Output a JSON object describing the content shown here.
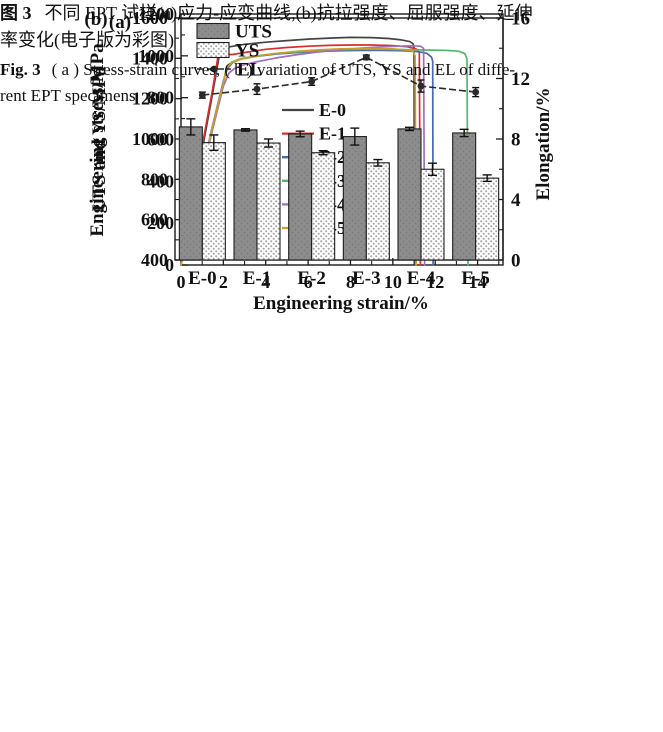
{
  "caption": {
    "zh_label": "图 3",
    "zh_line1_rest": "不同 EPT 试样(a)应力-应变曲线,(b)抗拉强度、屈服强度、延伸",
    "zh_line2": "率变化(电子版为彩图)",
    "en_label": "Fig. 3",
    "en_line1_rest": "( a ) Stress-strain curves, ( b ) variation of UTS, YS and EL of diffe-",
    "en_line2": "rent EPT specimens"
  },
  "chart_data": [
    {
      "id": "a",
      "type": "line",
      "panel_label": "(a)",
      "xlabel": "Engineering strain/%",
      "ylabel": "Engineering stress/MPa",
      "xlim": [
        0,
        15.2
      ],
      "ylim": [
        0,
        1200
      ],
      "xticks": [
        0,
        2,
        4,
        6,
        8,
        10,
        12,
        14
      ],
      "xminor": [
        1,
        3,
        5,
        7,
        9,
        11,
        13,
        15
      ],
      "yticks": [
        0,
        200,
        400,
        600,
        800,
        1000,
        1200
      ],
      "yminor": [
        100,
        300,
        500,
        700,
        900,
        1100
      ],
      "grid": false,
      "legend_position": "inside-center-left",
      "series": [
        {
          "name": "E-0",
          "color": "#454545",
          "points": [
            [
              0,
              0
            ],
            [
              0.5,
              275
            ],
            [
              1.0,
              550
            ],
            [
              1.5,
              825
            ],
            [
              1.85,
              1025
            ],
            [
              1.95,
              1046
            ],
            [
              2.1,
              1049
            ],
            [
              2.3,
              1043
            ],
            [
              3,
              1055
            ],
            [
              4,
              1065
            ],
            [
              5,
              1073
            ],
            [
              6,
              1080
            ],
            [
              7,
              1085
            ],
            [
              8,
              1088
            ],
            [
              9,
              1087
            ],
            [
              9.8,
              1083
            ],
            [
              10.4,
              1076
            ],
            [
              10.8,
              1068
            ],
            [
              10.95,
              1058
            ],
            [
              11.0,
              1040
            ],
            [
              11.02,
              0
            ]
          ]
        },
        {
          "name": "E-1",
          "color": "#dd2c2a",
          "points": [
            [
              0,
              0
            ],
            [
              0.5,
              290
            ],
            [
              1.0,
              570
            ],
            [
              1.5,
              845
            ],
            [
              1.8,
              1030
            ],
            [
              1.9,
              1041
            ],
            [
              2.0,
              1025
            ],
            [
              2.1,
              1009
            ],
            [
              2.4,
              1006
            ],
            [
              3.0,
              1016
            ],
            [
              4.0,
              1031
            ],
            [
              5.0,
              1040
            ],
            [
              6.0,
              1046
            ],
            [
              7.0,
              1050
            ],
            [
              8.0,
              1052
            ],
            [
              9.0,
              1052
            ],
            [
              10.0,
              1049
            ],
            [
              10.7,
              1043
            ],
            [
              11.1,
              1033
            ],
            [
              11.25,
              1015
            ],
            [
              11.3,
              0
            ]
          ]
        },
        {
          "name": "E-2",
          "color": "#4868b1",
          "points": [
            [
              0,
              0
            ],
            [
              0.5,
              225
            ],
            [
              1.0,
              450
            ],
            [
              1.5,
              672
            ],
            [
              2.0,
              880
            ],
            [
              2.2,
              942
            ],
            [
              2.45,
              968
            ],
            [
              2.8,
              984
            ],
            [
              3.5,
              997
            ],
            [
              4.5,
              1009
            ],
            [
              5.5,
              1016
            ],
            [
              6.5,
              1021
            ],
            [
              7.5,
              1024
            ],
            [
              8.5,
              1026
            ],
            [
              9.5,
              1026
            ],
            [
              10.5,
              1024
            ],
            [
              11.2,
              1020
            ],
            [
              11.6,
              1012
            ],
            [
              11.82,
              995
            ],
            [
              11.88,
              975
            ],
            [
              11.9,
              0
            ]
          ]
        },
        {
          "name": "E-3",
          "color": "#52b96b",
          "points": [
            [
              0,
              0
            ],
            [
              0.5,
              222
            ],
            [
              1.0,
              444
            ],
            [
              1.5,
              665
            ],
            [
              2.0,
              872
            ],
            [
              2.15,
              948
            ],
            [
              2.4,
              970
            ],
            [
              2.8,
              986
            ],
            [
              3.5,
              999
            ],
            [
              4.5,
              1011
            ],
            [
              5.5,
              1019
            ],
            [
              6.5,
              1025
            ],
            [
              7.5,
              1029
            ],
            [
              8.5,
              1031
            ],
            [
              9.5,
              1031
            ],
            [
              10.5,
              1030
            ],
            [
              11.5,
              1028
            ],
            [
              12.5,
              1026
            ],
            [
              13.1,
              1022
            ],
            [
              13.4,
              1010
            ],
            [
              13.5,
              985
            ],
            [
              13.55,
              0
            ]
          ]
        },
        {
          "name": "E-4",
          "color": "#a06fba",
          "points": [
            [
              0,
              0
            ],
            [
              0.5,
              218
            ],
            [
              1.0,
              436
            ],
            [
              1.5,
              652
            ],
            [
              2.0,
              855
            ],
            [
              2.25,
              916
            ],
            [
              2.5,
              938
            ],
            [
              2.9,
              955
            ],
            [
              3.5,
              970
            ],
            [
              4.5,
              990
            ],
            [
              5.5,
              1006
            ],
            [
              6.5,
              1019
            ],
            [
              7.5,
              1029
            ],
            [
              8.5,
              1037
            ],
            [
              9.5,
              1043
            ],
            [
              10.3,
              1046
            ],
            [
              10.9,
              1048
            ],
            [
              11.3,
              1046
            ],
            [
              11.45,
              1036
            ],
            [
              11.5,
              0
            ]
          ]
        },
        {
          "name": "E-5",
          "color": "#cd9e2b",
          "points": [
            [
              0,
              0
            ],
            [
              0.5,
              222
            ],
            [
              1.0,
              445
            ],
            [
              1.5,
              668
            ],
            [
              2.0,
              870
            ],
            [
              2.15,
              944
            ],
            [
              2.4,
              966
            ],
            [
              2.8,
              983
            ],
            [
              3.5,
              998
            ],
            [
              4.5,
              1012
            ],
            [
              5.5,
              1022
            ],
            [
              6.5,
              1029
            ],
            [
              7.5,
              1033
            ],
            [
              8.5,
              1035
            ],
            [
              9.3,
              1035
            ],
            [
              10.0,
              1033
            ],
            [
              10.6,
              1029
            ],
            [
              10.95,
              1022
            ],
            [
              11.05,
              1000
            ],
            [
              11.1,
              0
            ]
          ]
        }
      ]
    },
    {
      "id": "b",
      "type": "bar+line",
      "panel_label": "(b)",
      "categories": [
        "E-0",
        "E-1",
        "E-2",
        "E-3",
        "E-4",
        "E-5"
      ],
      "ylabel_left": "UTS and YS/MPa",
      "ylabel_right": "Elongation/%",
      "ylim_left": [
        400,
        1600
      ],
      "yticks_left": [
        400,
        600,
        800,
        1000,
        1200,
        1400,
        1600
      ],
      "yminor_left": [
        500,
        700,
        900,
        1100,
        1300,
        1500
      ],
      "ylim_right": [
        0,
        16
      ],
      "yticks_right": [
        0,
        4,
        8,
        12,
        16
      ],
      "yminor_right": [
        2,
        6,
        10,
        14
      ],
      "grid": false,
      "legend_position": "inside-top-left",
      "bar_series": [
        {
          "name": "UTS",
          "fill_style": "solid-gray",
          "color": "#8d8d8d",
          "values": [
            1060,
            1045,
            1025,
            1012,
            1050,
            1030
          ],
          "errors": [
            40,
            6,
            14,
            42,
            8,
            18
          ]
        },
        {
          "name": "YS",
          "fill_style": "dot-pattern",
          "color": "#f8f8f8",
          "values": [
            982,
            980,
            932,
            882,
            850,
            806
          ],
          "errors": [
            38,
            20,
            10,
            16,
            30,
            16
          ]
        }
      ],
      "line_series": {
        "name": "EL",
        "axis": "right",
        "color": "#2a2a2a",
        "marker": "filled-circle",
        "linestyle": "dashed",
        "values": [
          10.9,
          11.3,
          11.8,
          13.4,
          11.5,
          11.1
        ],
        "errors": [
          0.2,
          0.35,
          0.25,
          0.15,
          0.4,
          0.3
        ]
      }
    }
  ]
}
